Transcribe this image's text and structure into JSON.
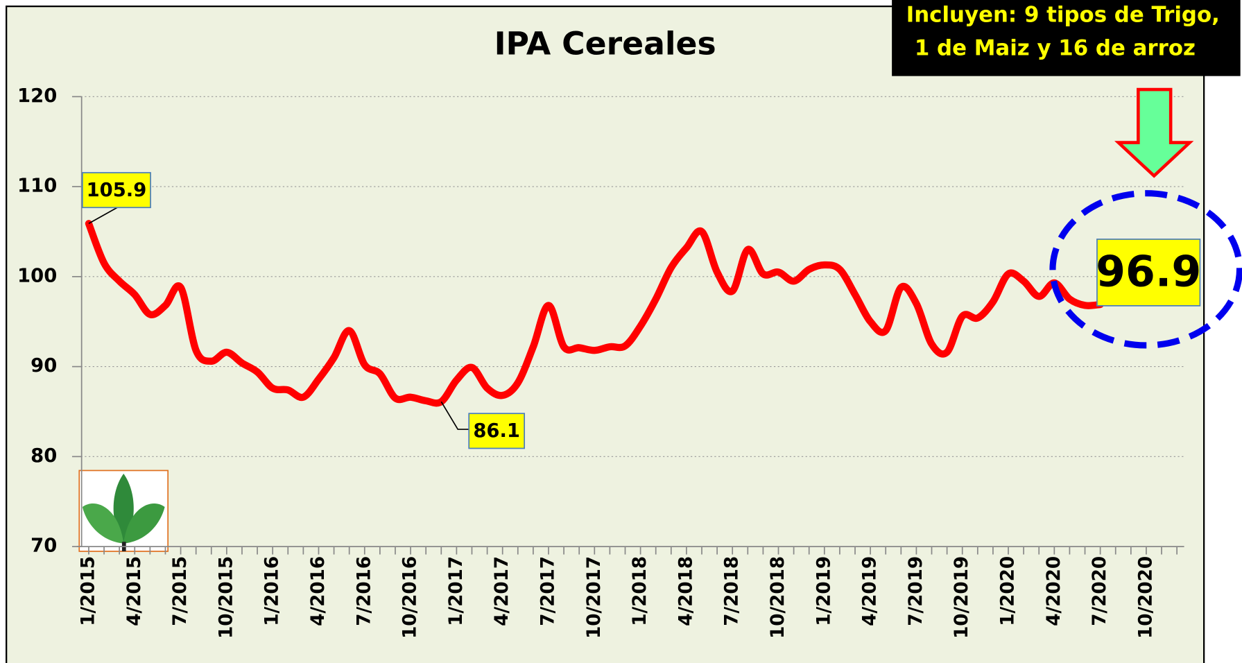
{
  "chart_data": {
    "type": "line",
    "title": "IPA Cereales",
    "annotations": [
      "Incluyen: 9 tipos de Trigo,",
      "1 de Maiz y 16 de arroz"
    ],
    "categories": [
      "1/2015",
      null,
      null,
      "4/2015",
      null,
      null,
      "7/2015",
      null,
      null,
      "10/2015",
      null,
      null,
      "1/2016",
      null,
      null,
      "4/2016",
      null,
      null,
      "7/2016",
      null,
      null,
      "10/2016",
      null,
      null,
      "1/2017",
      null,
      null,
      "4/2017",
      null,
      null,
      "7/2017",
      null,
      null,
      "10/2017",
      null,
      null,
      "1/2018",
      null,
      null,
      "4/2018",
      null,
      null,
      "7/2018",
      null,
      null,
      "10/2018",
      null,
      null,
      "1/2019",
      null,
      null,
      "4/2019",
      null,
      null,
      "7/2019",
      null,
      null,
      "10/2019",
      null,
      null,
      "1/2020",
      null,
      null,
      "4/2020",
      null,
      null,
      "7/2020",
      null,
      null,
      "10/2020",
      null,
      null
    ],
    "series": [
      {
        "name": "IPA Cereales",
        "color": "#ff0000",
        "values": [
          105.9,
          101.5,
          99.5,
          98,
          95.8,
          96.8,
          98.8,
          91.8,
          90.6,
          91.6,
          90.4,
          89.4,
          87.6,
          87.4,
          86.6,
          88.6,
          91,
          94,
          90.2,
          89.2,
          86.5,
          86.6,
          86.2,
          86.1,
          88.5,
          89.9,
          87.6,
          86.8,
          88.2,
          92.2,
          96.8,
          92.2,
          92.1,
          91.8,
          92.2,
          92.3,
          94.5,
          97.5,
          101,
          103.2,
          105,
          100.5,
          98.4,
          103,
          100.3,
          100.5,
          99.5,
          100.8,
          101.3,
          100.8,
          98,
          95,
          94,
          98.8,
          97,
          92.5,
          91.6,
          95.6,
          95.4,
          97.2,
          100.3,
          99.5,
          97.8,
          99.3,
          97.5,
          96.8,
          96.9,
          null,
          null,
          null,
          null,
          null
        ]
      }
    ],
    "ylim": [
      70,
      120
    ],
    "yticks": [
      70,
      80,
      90,
      100,
      110,
      120
    ],
    "grid": true
  }
}
